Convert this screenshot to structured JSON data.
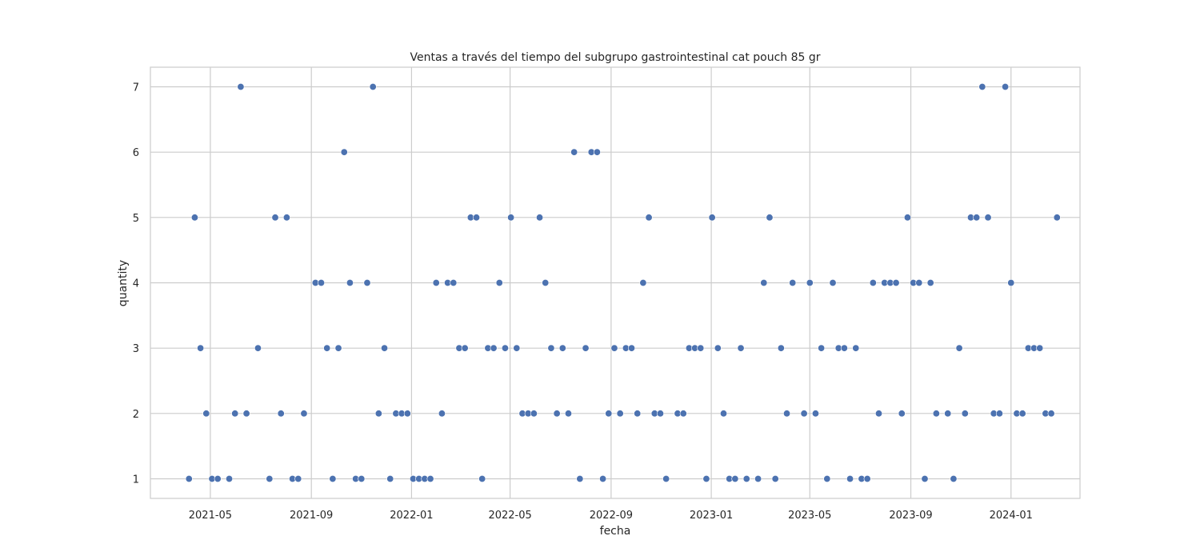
{
  "chart_data": {
    "type": "scatter",
    "title": "Ventas a través del tiempo del subgrupo gastrointestinal cat pouch 85 gr",
    "xlabel": "fecha",
    "ylabel": "quantity",
    "x_ticks": [
      "2021-05",
      "2021-09",
      "2022-01",
      "2022-05",
      "2022-09",
      "2023-01",
      "2023-05",
      "2023-09",
      "2024-01"
    ],
    "y_ticks": [
      "1",
      "2",
      "3",
      "4",
      "5",
      "6",
      "7"
    ],
    "xlim": [
      "2021-02-17",
      "2024-03-25"
    ],
    "ylim": [
      0.7,
      7.3
    ],
    "grid": true,
    "marker_color": "#4c72b0",
    "grid_color": "#cccccc",
    "frame_color": "#cccccc",
    "points": [
      {
        "x": "2021-04-05",
        "y": 1
      },
      {
        "x": "2021-04-12",
        "y": 5
      },
      {
        "x": "2021-04-19",
        "y": 3
      },
      {
        "x": "2021-04-26",
        "y": 2
      },
      {
        "x": "2021-05-03",
        "y": 1
      },
      {
        "x": "2021-05-10",
        "y": 1
      },
      {
        "x": "2021-05-24",
        "y": 1
      },
      {
        "x": "2021-05-31",
        "y": 2
      },
      {
        "x": "2021-06-07",
        "y": 7
      },
      {
        "x": "2021-06-14",
        "y": 2
      },
      {
        "x": "2021-06-28",
        "y": 3
      },
      {
        "x": "2021-07-12",
        "y": 1
      },
      {
        "x": "2021-07-19",
        "y": 5
      },
      {
        "x": "2021-07-26",
        "y": 2
      },
      {
        "x": "2021-08-02",
        "y": 5
      },
      {
        "x": "2021-08-09",
        "y": 1
      },
      {
        "x": "2021-08-16",
        "y": 1
      },
      {
        "x": "2021-08-23",
        "y": 2
      },
      {
        "x": "2021-09-06",
        "y": 4
      },
      {
        "x": "2021-09-13",
        "y": 4
      },
      {
        "x": "2021-09-20",
        "y": 3
      },
      {
        "x": "2021-09-27",
        "y": 1
      },
      {
        "x": "2021-10-04",
        "y": 3
      },
      {
        "x": "2021-10-11",
        "y": 6
      },
      {
        "x": "2021-10-18",
        "y": 4
      },
      {
        "x": "2021-10-25",
        "y": 1
      },
      {
        "x": "2021-11-01",
        "y": 1
      },
      {
        "x": "2021-11-08",
        "y": 4
      },
      {
        "x": "2021-11-15",
        "y": 7
      },
      {
        "x": "2021-11-22",
        "y": 2
      },
      {
        "x": "2021-11-29",
        "y": 3
      },
      {
        "x": "2021-12-06",
        "y": 1
      },
      {
        "x": "2021-12-13",
        "y": 2
      },
      {
        "x": "2021-12-20",
        "y": 2
      },
      {
        "x": "2021-12-27",
        "y": 2
      },
      {
        "x": "2022-01-03",
        "y": 1
      },
      {
        "x": "2022-01-10",
        "y": 1
      },
      {
        "x": "2022-01-17",
        "y": 1
      },
      {
        "x": "2022-01-24",
        "y": 1
      },
      {
        "x": "2022-01-31",
        "y": 4
      },
      {
        "x": "2022-02-07",
        "y": 2
      },
      {
        "x": "2022-02-14",
        "y": 4
      },
      {
        "x": "2022-02-21",
        "y": 4
      },
      {
        "x": "2022-02-28",
        "y": 3
      },
      {
        "x": "2022-03-07",
        "y": 3
      },
      {
        "x": "2022-03-14",
        "y": 5
      },
      {
        "x": "2022-03-21",
        "y": 5
      },
      {
        "x": "2022-03-28",
        "y": 1
      },
      {
        "x": "2022-04-04",
        "y": 3
      },
      {
        "x": "2022-04-11",
        "y": 3
      },
      {
        "x": "2022-04-18",
        "y": 4
      },
      {
        "x": "2022-04-25",
        "y": 3
      },
      {
        "x": "2022-05-02",
        "y": 5
      },
      {
        "x": "2022-05-09",
        "y": 3
      },
      {
        "x": "2022-05-16",
        "y": 2
      },
      {
        "x": "2022-05-23",
        "y": 2
      },
      {
        "x": "2022-05-30",
        "y": 2
      },
      {
        "x": "2022-06-06",
        "y": 5
      },
      {
        "x": "2022-06-13",
        "y": 4
      },
      {
        "x": "2022-06-20",
        "y": 3
      },
      {
        "x": "2022-06-27",
        "y": 2
      },
      {
        "x": "2022-07-04",
        "y": 3
      },
      {
        "x": "2022-07-11",
        "y": 2
      },
      {
        "x": "2022-07-18",
        "y": 6
      },
      {
        "x": "2022-07-25",
        "y": 1
      },
      {
        "x": "2022-08-01",
        "y": 3
      },
      {
        "x": "2022-08-08",
        "y": 6
      },
      {
        "x": "2022-08-15",
        "y": 6
      },
      {
        "x": "2022-08-22",
        "y": 1
      },
      {
        "x": "2022-08-29",
        "y": 2
      },
      {
        "x": "2022-09-05",
        "y": 3
      },
      {
        "x": "2022-09-12",
        "y": 2
      },
      {
        "x": "2022-09-19",
        "y": 3
      },
      {
        "x": "2022-09-26",
        "y": 3
      },
      {
        "x": "2022-10-03",
        "y": 2
      },
      {
        "x": "2022-10-10",
        "y": 4
      },
      {
        "x": "2022-10-17",
        "y": 5
      },
      {
        "x": "2022-10-24",
        "y": 2
      },
      {
        "x": "2022-10-31",
        "y": 2
      },
      {
        "x": "2022-11-07",
        "y": 1
      },
      {
        "x": "2022-11-21",
        "y": 2
      },
      {
        "x": "2022-11-28",
        "y": 2
      },
      {
        "x": "2022-12-05",
        "y": 3
      },
      {
        "x": "2022-12-12",
        "y": 3
      },
      {
        "x": "2022-12-19",
        "y": 3
      },
      {
        "x": "2022-12-26",
        "y": 1
      },
      {
        "x": "2023-01-02",
        "y": 5
      },
      {
        "x": "2023-01-09",
        "y": 3
      },
      {
        "x": "2023-01-16",
        "y": 2
      },
      {
        "x": "2023-01-23",
        "y": 1
      },
      {
        "x": "2023-01-30",
        "y": 1
      },
      {
        "x": "2023-02-06",
        "y": 3
      },
      {
        "x": "2023-02-13",
        "y": 1
      },
      {
        "x": "2023-02-27",
        "y": 1
      },
      {
        "x": "2023-03-06",
        "y": 4
      },
      {
        "x": "2023-03-13",
        "y": 5
      },
      {
        "x": "2023-03-20",
        "y": 1
      },
      {
        "x": "2023-03-27",
        "y": 3
      },
      {
        "x": "2023-04-03",
        "y": 2
      },
      {
        "x": "2023-04-10",
        "y": 4
      },
      {
        "x": "2023-04-24",
        "y": 2
      },
      {
        "x": "2023-05-01",
        "y": 4
      },
      {
        "x": "2023-05-08",
        "y": 2
      },
      {
        "x": "2023-05-15",
        "y": 3
      },
      {
        "x": "2023-05-22",
        "y": 1
      },
      {
        "x": "2023-05-29",
        "y": 4
      },
      {
        "x": "2023-06-05",
        "y": 3
      },
      {
        "x": "2023-06-12",
        "y": 3
      },
      {
        "x": "2023-06-19",
        "y": 1
      },
      {
        "x": "2023-06-26",
        "y": 3
      },
      {
        "x": "2023-07-03",
        "y": 1
      },
      {
        "x": "2023-07-10",
        "y": 1
      },
      {
        "x": "2023-07-17",
        "y": 4
      },
      {
        "x": "2023-07-24",
        "y": 2
      },
      {
        "x": "2023-07-31",
        "y": 4
      },
      {
        "x": "2023-08-07",
        "y": 4
      },
      {
        "x": "2023-08-14",
        "y": 4
      },
      {
        "x": "2023-08-21",
        "y": 2
      },
      {
        "x": "2023-08-28",
        "y": 5
      },
      {
        "x": "2023-09-04",
        "y": 4
      },
      {
        "x": "2023-09-11",
        "y": 4
      },
      {
        "x": "2023-09-18",
        "y": 1
      },
      {
        "x": "2023-09-25",
        "y": 4
      },
      {
        "x": "2023-10-02",
        "y": 2
      },
      {
        "x": "2023-10-16",
        "y": 2
      },
      {
        "x": "2023-10-23",
        "y": 1
      },
      {
        "x": "2023-10-30",
        "y": 3
      },
      {
        "x": "2023-11-06",
        "y": 2
      },
      {
        "x": "2023-11-13",
        "y": 5
      },
      {
        "x": "2023-11-20",
        "y": 5
      },
      {
        "x": "2023-11-27",
        "y": 7
      },
      {
        "x": "2023-12-04",
        "y": 5
      },
      {
        "x": "2023-12-11",
        "y": 2
      },
      {
        "x": "2023-12-18",
        "y": 2
      },
      {
        "x": "2023-12-25",
        "y": 7
      },
      {
        "x": "2024-01-01",
        "y": 4
      },
      {
        "x": "2024-01-08",
        "y": 2
      },
      {
        "x": "2024-01-15",
        "y": 2
      },
      {
        "x": "2024-01-22",
        "y": 3
      },
      {
        "x": "2024-01-29",
        "y": 3
      },
      {
        "x": "2024-02-05",
        "y": 3
      },
      {
        "x": "2024-02-12",
        "y": 2
      },
      {
        "x": "2024-02-19",
        "y": 2
      },
      {
        "x": "2024-02-26",
        "y": 5
      }
    ]
  }
}
